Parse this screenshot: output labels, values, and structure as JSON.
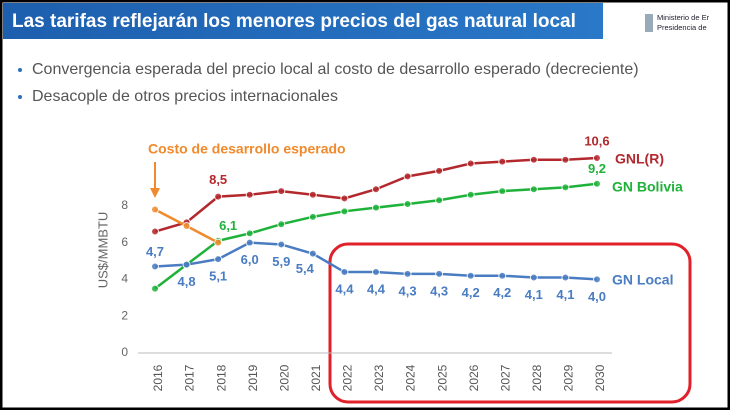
{
  "header": {
    "title": "Las tarifas reflejarán los menores precios del gas natural local",
    "logo_lines": [
      "Ministerio de Er",
      "Presidencia de"
    ]
  },
  "bullets": [
    "Convergencia esperada del precio local al costo de desarrollo esperado (decreciente)",
    "Desacople de otros precios internacionales"
  ],
  "chart_data": {
    "type": "line",
    "y_label": "US$/MMBTU",
    "categories": [
      "2016",
      "2017",
      "2018",
      "2019",
      "2020",
      "2021",
      "2022",
      "2023",
      "2024",
      "2025",
      "2026",
      "2027",
      "2028",
      "2029",
      "2030"
    ],
    "ylim": [
      0,
      11
    ],
    "yticks": [
      0,
      2,
      4,
      6,
      8
    ],
    "series": [
      {
        "name": "GNL(R)",
        "color": "#b3282d",
        "values": [
          6.6,
          7.1,
          8.5,
          8.6,
          8.8,
          8.6,
          8.4,
          8.9,
          9.6,
          9.9,
          10.3,
          10.4,
          10.5,
          10.5,
          10.6
        ],
        "value_labels": [
          null,
          null,
          "8,5",
          null,
          null,
          null,
          null,
          null,
          null,
          null,
          null,
          null,
          null,
          null,
          "10,6"
        ]
      },
      {
        "name": "GN Bolivia",
        "color": "#1fb23a",
        "values": [
          3.5,
          4.8,
          6.1,
          6.5,
          7.0,
          7.4,
          7.7,
          7.9,
          8.1,
          8.3,
          8.6,
          8.8,
          8.9,
          9.0,
          9.2
        ],
        "value_labels": [
          null,
          null,
          "6,1",
          null,
          null,
          null,
          null,
          null,
          null,
          null,
          null,
          null,
          null,
          null,
          "9,2"
        ]
      },
      {
        "name": "GN Local",
        "color": "#4a7cc2",
        "values": [
          4.7,
          4.8,
          5.1,
          6.0,
          5.9,
          5.4,
          4.4,
          4.4,
          4.3,
          4.3,
          4.2,
          4.2,
          4.1,
          4.1,
          4.0
        ],
        "value_labels": [
          "4,7",
          "4,8",
          "5,1",
          "6,0",
          "5,9",
          "5,4",
          "4,4",
          "4,4",
          "4,3",
          "4,3",
          "4,2",
          "4,2",
          "4,1",
          "4,1",
          "4,0"
        ]
      },
      {
        "name": "Costo de desarrollo esperado",
        "color": "#f08a2c",
        "values": [
          7.8,
          6.9,
          6.0,
          null,
          null,
          null,
          null,
          null,
          null,
          null,
          null,
          null,
          null,
          null,
          null
        ]
      }
    ]
  }
}
